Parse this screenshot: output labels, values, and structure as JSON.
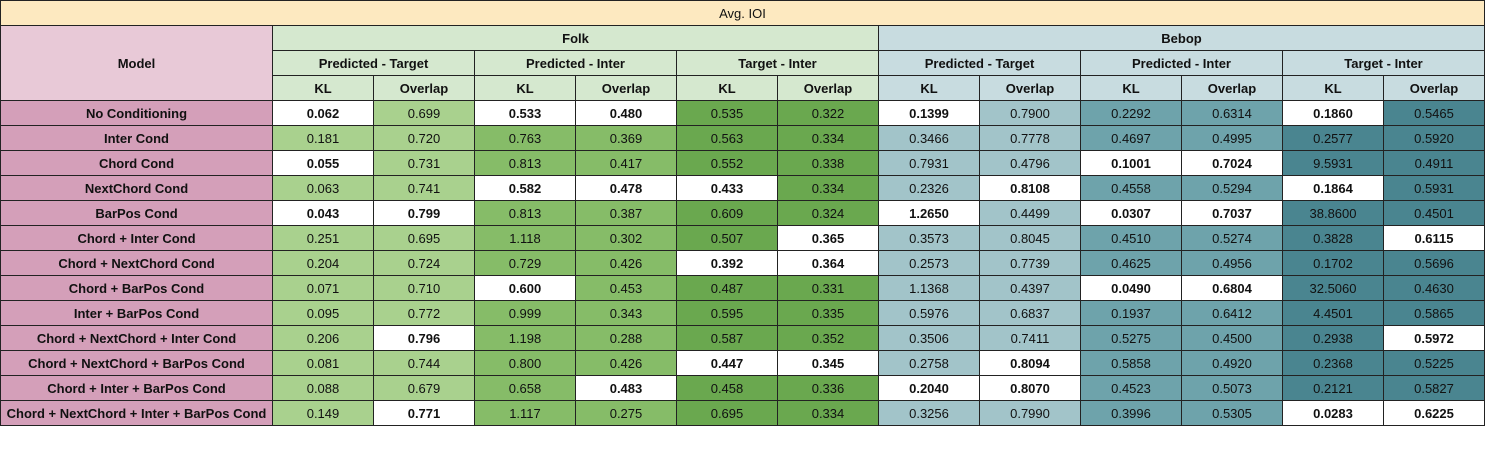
{
  "title": "Avg. IOI",
  "header": {
    "model_label": "Model",
    "groups": [
      "Folk",
      "Bebop"
    ],
    "subgroups": [
      "Predicted - Target",
      "Predicted - Inter",
      "Target - Inter"
    ],
    "metrics": [
      "KL",
      "Overlap"
    ]
  },
  "rows": [
    {
      "name": "No Conditioning",
      "values": [
        "0.062",
        "0.699",
        "0.533",
        "0.480",
        "0.535",
        "0.322",
        "0.1399",
        "0.7900",
        "0.2292",
        "0.6314",
        "0.1860",
        "0.5465"
      ]
    },
    {
      "name": "Inter Cond",
      "values": [
        "0.181",
        "0.720",
        "0.763",
        "0.369",
        "0.563",
        "0.334",
        "0.3466",
        "0.7778",
        "0.4697",
        "0.4995",
        "0.2577",
        "0.5920"
      ]
    },
    {
      "name": "Chord Cond",
      "values": [
        "0.055",
        "0.731",
        "0.813",
        "0.417",
        "0.552",
        "0.338",
        "0.7931",
        "0.4796",
        "0.1001",
        "0.7024",
        "9.5931",
        "0.4911"
      ]
    },
    {
      "name": "NextChord Cond",
      "values": [
        "0.063",
        "0.741",
        "0.582",
        "0.478",
        "0.433",
        "0.334",
        "0.2326",
        "0.8108",
        "0.4558",
        "0.5294",
        "0.1864",
        "0.5931"
      ]
    },
    {
      "name": "BarPos Cond",
      "values": [
        "0.043",
        "0.799",
        "0.813",
        "0.387",
        "0.609",
        "0.324",
        "1.2650",
        "0.4499",
        "0.0307",
        "0.7037",
        "38.8600",
        "0.4501"
      ]
    },
    {
      "name": "Chord + Inter Cond",
      "values": [
        "0.251",
        "0.695",
        "1.118",
        "0.302",
        "0.507",
        "0.365",
        "0.3573",
        "0.8045",
        "0.4510",
        "0.5274",
        "0.3828",
        "0.6115"
      ]
    },
    {
      "name": "Chord + NextChord Cond",
      "values": [
        "0.204",
        "0.724",
        "0.729",
        "0.426",
        "0.392",
        "0.364",
        "0.2573",
        "0.7739",
        "0.4625",
        "0.4956",
        "0.1702",
        "0.5696"
      ]
    },
    {
      "name": "Chord + BarPos Cond",
      "values": [
        "0.071",
        "0.710",
        "0.600",
        "0.453",
        "0.487",
        "0.331",
        "1.1368",
        "0.4397",
        "0.0490",
        "0.6804",
        "32.5060",
        "0.4630"
      ]
    },
    {
      "name": "Inter + BarPos Cond",
      "values": [
        "0.095",
        "0.772",
        "0.999",
        "0.343",
        "0.595",
        "0.335",
        "0.5976",
        "0.6837",
        "0.1937",
        "0.6412",
        "4.4501",
        "0.5865"
      ]
    },
    {
      "name": "Chord + NextChord + Inter Cond",
      "values": [
        "0.206",
        "0.796",
        "1.198",
        "0.288",
        "0.587",
        "0.352",
        "0.3506",
        "0.7411",
        "0.5275",
        "0.4500",
        "0.2938",
        "0.5972"
      ]
    },
    {
      "name": "Chord + NextChord + BarPos Cond",
      "values": [
        "0.081",
        "0.744",
        "0.800",
        "0.426",
        "0.447",
        "0.345",
        "0.2758",
        "0.8094",
        "0.5858",
        "0.4920",
        "0.2368",
        "0.5225"
      ]
    },
    {
      "name": "Chord + Inter + BarPos Cond",
      "values": [
        "0.088",
        "0.679",
        "0.658",
        "0.483",
        "0.458",
        "0.336",
        "0.2040",
        "0.8070",
        "0.4523",
        "0.5073",
        "0.2121",
        "0.5827"
      ]
    },
    {
      "name": "Chord + NextChord + Inter + BarPos Cond",
      "values": [
        "0.149",
        "0.771",
        "1.117",
        "0.275",
        "0.695",
        "0.334",
        "0.3256",
        "0.7990",
        "0.3996",
        "0.5305",
        "0.0283",
        "0.6225"
      ]
    }
  ],
  "highlight": [
    [
      1,
      0,
      1,
      1,
      0,
      0,
      1,
      0,
      0,
      0,
      1,
      0
    ],
    [
      0,
      0,
      0,
      0,
      0,
      0,
      0,
      0,
      0,
      0,
      0,
      0
    ],
    [
      1,
      0,
      0,
      0,
      0,
      0,
      0,
      0,
      1,
      1,
      0,
      0
    ],
    [
      0,
      0,
      1,
      1,
      1,
      0,
      0,
      1,
      0,
      0,
      1,
      0
    ],
    [
      1,
      1,
      0,
      0,
      0,
      0,
      1,
      0,
      1,
      1,
      0,
      0
    ],
    [
      0,
      0,
      0,
      0,
      0,
      1,
      0,
      0,
      0,
      0,
      0,
      1
    ],
    [
      0,
      0,
      0,
      0,
      1,
      1,
      0,
      0,
      0,
      0,
      0,
      0
    ],
    [
      0,
      0,
      1,
      0,
      0,
      0,
      0,
      0,
      1,
      1,
      0,
      0
    ],
    [
      0,
      0,
      0,
      0,
      0,
      0,
      0,
      0,
      0,
      0,
      0,
      0
    ],
    [
      0,
      1,
      0,
      0,
      0,
      0,
      0,
      0,
      0,
      0,
      0,
      1
    ],
    [
      0,
      0,
      0,
      0,
      1,
      1,
      0,
      1,
      0,
      0,
      0,
      0
    ],
    [
      0,
      0,
      0,
      1,
      0,
      0,
      1,
      1,
      0,
      0,
      0,
      0
    ],
    [
      0,
      1,
      0,
      0,
      0,
      0,
      0,
      0,
      0,
      0,
      1,
      1
    ]
  ],
  "colors": {
    "title_bg": "#fde9c0",
    "model_header_bg": "#e8c9d7",
    "row_name_bg": "#d49fb9",
    "folk_header_bg": "#d5e8cf",
    "bebop_header_bg": "#c8dce0",
    "folk_shades": [
      "#a9d18e",
      "#86bc68",
      "#6aa84f"
    ],
    "bebop_shades": [
      "#a2c4c9",
      "#6ea3ab",
      "#4a8590"
    ],
    "best_bg": "#ffffff"
  }
}
